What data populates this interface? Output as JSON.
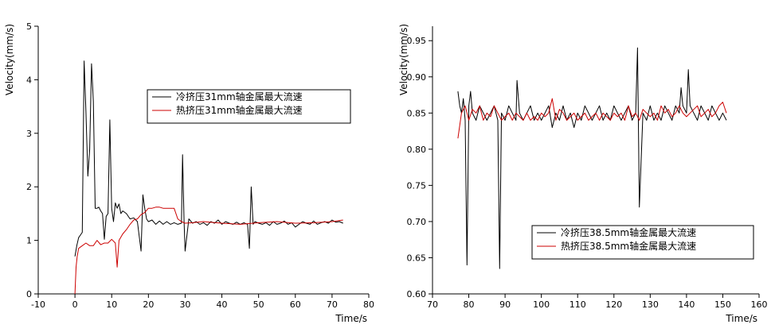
{
  "chart_data": [
    {
      "type": "line",
      "xlabel": "Time/s",
      "ylabel": "Velocity(mm/s)",
      "xlim": [
        -10,
        80
      ],
      "ylim": [
        0,
        5
      ],
      "xticks": [
        "-10",
        "0",
        "10",
        "20",
        "30",
        "40",
        "50",
        "60",
        "70",
        "80"
      ],
      "yticks": [
        "0",
        "1",
        "2",
        "3",
        "4",
        "5"
      ],
      "legend_position": "top-right",
      "series": [
        {
          "name": "冷挤压31mm轴金属最大流速",
          "color": "#000000",
          "x": [
            0,
            0.5,
            1,
            1.5,
            2,
            2.5,
            3,
            3.5,
            4,
            4.5,
            5,
            5.5,
            6,
            6.5,
            7,
            7.5,
            8,
            8.5,
            9,
            9.5,
            10,
            10.5,
            11,
            11.5,
            12,
            12.5,
            13,
            14,
            15,
            16,
            17,
            18,
            18.5,
            19,
            19.5,
            20,
            21,
            22,
            23,
            24,
            25,
            26,
            27,
            28,
            29,
            29.3,
            29.7,
            30,
            31,
            32,
            33,
            34,
            35,
            36,
            37,
            38,
            39,
            40,
            41,
            42,
            43,
            44,
            45,
            46,
            47,
            47.5,
            48,
            48.5,
            49,
            50,
            51,
            52,
            53,
            54,
            55,
            56,
            57,
            58,
            59,
            60,
            61,
            62,
            63,
            64,
            65,
            66,
            67,
            68,
            69,
            70,
            71,
            72,
            73
          ],
          "y": [
            0.7,
            0.9,
            1.05,
            1.1,
            1.15,
            4.35,
            3.4,
            2.2,
            2.7,
            4.3,
            3.6,
            1.6,
            1.6,
            1.62,
            1.55,
            1.5,
            1.02,
            1.45,
            1.5,
            3.25,
            1.6,
            1.35,
            1.7,
            1.6,
            1.68,
            1.5,
            1.55,
            1.5,
            1.4,
            1.42,
            1.35,
            0.8,
            1.85,
            1.6,
            1.4,
            1.35,
            1.38,
            1.3,
            1.36,
            1.3,
            1.35,
            1.3,
            1.33,
            1.3,
            1.32,
            2.6,
            1.35,
            0.8,
            1.4,
            1.32,
            1.35,
            1.3,
            1.33,
            1.28,
            1.35,
            1.32,
            1.38,
            1.3,
            1.35,
            1.32,
            1.3,
            1.34,
            1.3,
            1.33,
            1.3,
            0.85,
            2.0,
            1.3,
            1.35,
            1.32,
            1.3,
            1.33,
            1.28,
            1.35,
            1.3,
            1.32,
            1.36,
            1.3,
            1.33,
            1.25,
            1.3,
            1.35,
            1.32,
            1.3,
            1.36,
            1.3,
            1.33,
            1.35,
            1.32,
            1.38,
            1.34,
            1.35,
            1.32
          ]
        },
        {
          "name": "热挤压31mm轴金属最大流速",
          "color": "#cc0000",
          "x": [
            0,
            0.3,
            0.6,
            1,
            2,
            3,
            4,
            5,
            6,
            7,
            8,
            9,
            10,
            11,
            11.5,
            12,
            13,
            14,
            15,
            16,
            17,
            18,
            19,
            20,
            21,
            22,
            23,
            24,
            25,
            26,
            27,
            28,
            29,
            30,
            32,
            35,
            40,
            45,
            50,
            55,
            60,
            65,
            70,
            73
          ],
          "y": [
            0,
            0.5,
            0.7,
            0.85,
            0.9,
            0.95,
            0.9,
            0.9,
            1.0,
            0.92,
            0.95,
            0.95,
            1.02,
            0.95,
            0.5,
            1.0,
            1.12,
            1.2,
            1.3,
            1.38,
            1.4,
            1.48,
            1.52,
            1.6,
            1.6,
            1.62,
            1.62,
            1.6,
            1.6,
            1.6,
            1.6,
            1.4,
            1.35,
            1.32,
            1.33,
            1.35,
            1.32,
            1.3,
            1.33,
            1.35,
            1.32,
            1.33,
            1.35,
            1.38
          ]
        }
      ]
    },
    {
      "type": "line",
      "xlabel": "Time/s",
      "ylabel": "Velocity(mm/s)",
      "xlim": [
        70,
        160
      ],
      "ylim": [
        0.6,
        0.97
      ],
      "xticks": [
        "70",
        "80",
        "90",
        "100",
        "110",
        "120",
        "130",
        "140",
        "150",
        "160"
      ],
      "yticks": [
        "0.60",
        "0.65",
        "0.70",
        "0.75",
        "0.80",
        "0.85",
        "0.90",
        "0.95"
      ],
      "legend_position": "bottom-right",
      "series": [
        {
          "name": "冷挤压38.5mm轴金属最大流速",
          "color": "#000000",
          "x": [
            77,
            77.5,
            78,
            78.5,
            79,
            79.5,
            80,
            80.5,
            81,
            82,
            83,
            84,
            85,
            86,
            87,
            88,
            88.5,
            89,
            90,
            91,
            92,
            93,
            93.3,
            94,
            95,
            96,
            97,
            98,
            99,
            100,
            101,
            102,
            103,
            104,
            105,
            106,
            107,
            108,
            109,
            110,
            111,
            112,
            113,
            114,
            115,
            116,
            117,
            118,
            119,
            120,
            121,
            122,
            123,
            124,
            125,
            126,
            126.5,
            127,
            128,
            129,
            130,
            131,
            132,
            133,
            134,
            135,
            136,
            137,
            138,
            138.5,
            139,
            140,
            140.5,
            141,
            142,
            143,
            144,
            145,
            146,
            147,
            148,
            149,
            150,
            151
          ],
          "y": [
            0.88,
            0.86,
            0.85,
            0.87,
            0.84,
            0.64,
            0.86,
            0.88,
            0.85,
            0.84,
            0.86,
            0.85,
            0.84,
            0.85,
            0.86,
            0.84,
            0.635,
            0.85,
            0.84,
            0.86,
            0.85,
            0.84,
            0.895,
            0.85,
            0.84,
            0.85,
            0.86,
            0.84,
            0.85,
            0.84,
            0.85,
            0.86,
            0.83,
            0.85,
            0.84,
            0.86,
            0.84,
            0.85,
            0.83,
            0.85,
            0.84,
            0.86,
            0.85,
            0.84,
            0.85,
            0.86,
            0.84,
            0.85,
            0.84,
            0.86,
            0.85,
            0.84,
            0.85,
            0.86,
            0.84,
            0.85,
            0.94,
            0.72,
            0.85,
            0.84,
            0.86,
            0.84,
            0.85,
            0.84,
            0.86,
            0.85,
            0.84,
            0.86,
            0.85,
            0.885,
            0.86,
            0.85,
            0.91,
            0.86,
            0.85,
            0.84,
            0.86,
            0.85,
            0.84,
            0.86,
            0.85,
            0.84,
            0.85,
            0.84
          ]
        },
        {
          "name": "热挤压38.5mm轴金属最大流速",
          "color": "#cc0000",
          "x": [
            77,
            78,
            79,
            80,
            81,
            82,
            83,
            84,
            85,
            86,
            87,
            88,
            89,
            90,
            91,
            92,
            93,
            94,
            95,
            96,
            97,
            98,
            99,
            100,
            101,
            102,
            103,
            104,
            105,
            106,
            107,
            108,
            109,
            110,
            111,
            112,
            113,
            114,
            115,
            116,
            117,
            118,
            119,
            120,
            121,
            122,
            123,
            124,
            125,
            126,
            127,
            128,
            129,
            130,
            131,
            132,
            133,
            134,
            135,
            136,
            137,
            138,
            139,
            140,
            141,
            142,
            143,
            144,
            145,
            146,
            147,
            148,
            149,
            150,
            151
          ],
          "y": [
            0.815,
            0.85,
            0.86,
            0.84,
            0.855,
            0.85,
            0.86,
            0.84,
            0.85,
            0.845,
            0.86,
            0.85,
            0.84,
            0.845,
            0.85,
            0.84,
            0.85,
            0.845,
            0.84,
            0.85,
            0.84,
            0.845,
            0.84,
            0.85,
            0.845,
            0.85,
            0.87,
            0.84,
            0.855,
            0.85,
            0.84,
            0.845,
            0.85,
            0.84,
            0.845,
            0.85,
            0.84,
            0.845,
            0.85,
            0.84,
            0.85,
            0.845,
            0.84,
            0.85,
            0.845,
            0.85,
            0.84,
            0.86,
            0.845,
            0.85,
            0.84,
            0.855,
            0.85,
            0.845,
            0.85,
            0.84,
            0.86,
            0.85,
            0.855,
            0.845,
            0.85,
            0.86,
            0.85,
            0.845,
            0.85,
            0.855,
            0.86,
            0.845,
            0.85,
            0.855,
            0.845,
            0.85,
            0.86,
            0.865,
            0.85
          ]
        }
      ]
    }
  ]
}
